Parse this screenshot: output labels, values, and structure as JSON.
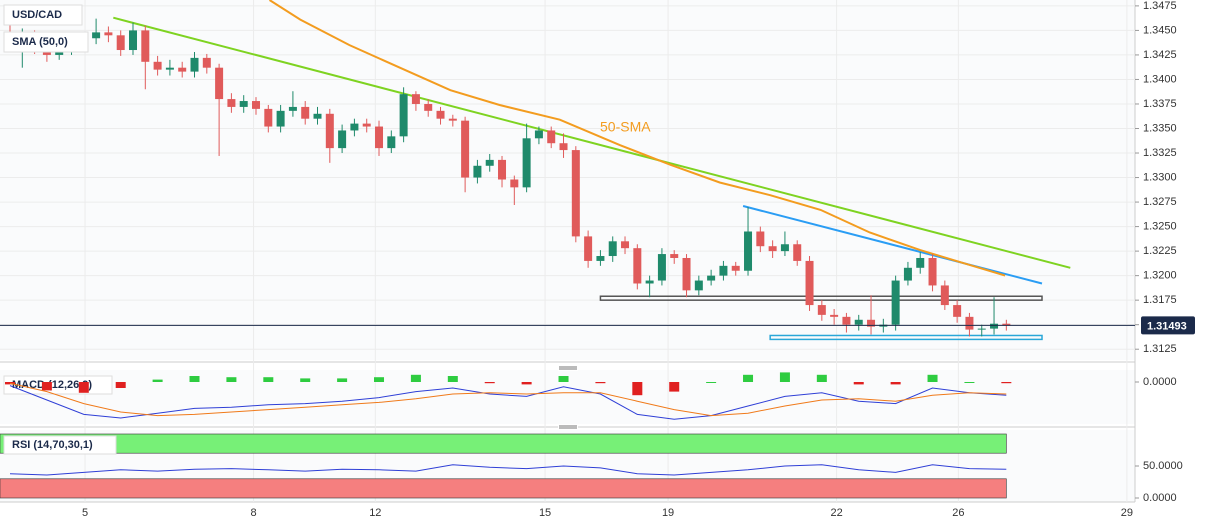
{
  "chart_data": [
    {
      "type": "candlestick",
      "title": "USD/CAD",
      "sma_title": "SMA (50,0)",
      "sma_label": "50-SMA",
      "up_color": "#1f8a6b",
      "down_color": "#e05a5a",
      "grid": true,
      "xlim": [
        -0.813,
        91.46
      ],
      "ylim": [
        1.3114,
        1.3481
      ],
      "xticks": [
        {
          "value": 6.1,
          "label": "5"
        },
        {
          "value": 19.8,
          "label": "8"
        },
        {
          "value": 29.7,
          "label": "12"
        },
        {
          "value": 43.5,
          "label": "15"
        },
        {
          "value": 53.5,
          "label": "19"
        },
        {
          "value": 67.2,
          "label": "22"
        },
        {
          "value": 77.1,
          "label": "26"
        },
        {
          "value": 90.8,
          "label": "29"
        }
      ],
      "yticks": [
        1.3125,
        {
          "value": 1.315,
          "label": "1.3150"
        },
        1.3175,
        {
          "value": 1.32,
          "label": "1.3200"
        },
        1.3225,
        {
          "value": 1.325,
          "label": "1.3250"
        },
        1.3275,
        {
          "value": 1.33,
          "label": "1.3300"
        },
        1.3325,
        {
          "value": 1.335,
          "label": "1.3350"
        },
        1.3375,
        {
          "value": 1.34,
          "label": "1.3400"
        },
        1.3425,
        {
          "value": 1.345,
          "label": "1.3450"
        },
        1.3475
      ],
      "open": [
        1.3448,
        1.344,
        1.3445,
        1.3432,
        1.3425,
        1.343,
        1.3438,
        1.3442,
        1.3448,
        1.3445,
        1.343,
        1.345,
        1.3418,
        1.341,
        1.3412,
        1.3408,
        1.3422,
        1.3412,
        1.338,
        1.3372,
        1.3378,
        1.337,
        1.3352,
        1.3368,
        1.3372,
        1.336,
        1.3365,
        1.333,
        1.3348,
        1.3355,
        1.3352,
        1.333,
        1.3342,
        1.3385,
        1.3375,
        1.3368,
        1.336,
        1.3358,
        1.33,
        1.3312,
        1.3318,
        1.3298,
        1.329,
        1.334,
        1.3348,
        1.3335,
        1.3328,
        1.324,
        1.3215,
        1.322,
        1.3235,
        1.3228,
        1.3192,
        1.3195,
        1.3222,
        1.3218,
        1.3185,
        1.3195,
        1.32,
        1.321,
        1.3205,
        1.3245,
        1.323,
        1.3225,
        1.3232,
        1.3215,
        1.317,
        1.316,
        1.3158,
        1.315,
        1.3155,
        1.3148,
        1.315,
        1.3195,
        1.3208,
        1.3218,
        1.319,
        1.317,
        1.3158,
        1.3145,
        1.3146,
        1.3151
      ],
      "high": [
        1.3455,
        1.3452,
        1.345,
        1.3438,
        1.3436,
        1.3444,
        1.3448,
        1.3462,
        1.3454,
        1.345,
        1.3458,
        1.3455,
        1.3424,
        1.342,
        1.3418,
        1.3428,
        1.3426,
        1.3416,
        1.3386,
        1.3384,
        1.3382,
        1.3374,
        1.3374,
        1.3388,
        1.3378,
        1.3372,
        1.337,
        1.3354,
        1.336,
        1.336,
        1.3358,
        1.3348,
        1.3392,
        1.3388,
        1.338,
        1.3372,
        1.3364,
        1.3362,
        1.3318,
        1.3324,
        1.3322,
        1.3302,
        1.3355,
        1.3352,
        1.3352,
        1.3345,
        1.3332,
        1.3246,
        1.3226,
        1.324,
        1.324,
        1.3232,
        1.32,
        1.3228,
        1.3226,
        1.3222,
        1.32,
        1.3206,
        1.3215,
        1.3214,
        1.327,
        1.325,
        1.3236,
        1.3245,
        1.3236,
        1.322,
        1.3175,
        1.3166,
        1.3162,
        1.316,
        1.318,
        1.3156,
        1.32,
        1.3214,
        1.3224,
        1.3222,
        1.3195,
        1.3175,
        1.3162,
        1.315,
        1.3178,
        1.3155
      ],
      "low": [
        1.3432,
        1.3412,
        1.3426,
        1.3418,
        1.342,
        1.3425,
        1.3432,
        1.3436,
        1.3438,
        1.3424,
        1.3425,
        1.339,
        1.3404,
        1.3404,
        1.3402,
        1.3402,
        1.3406,
        1.3322,
        1.3366,
        1.3366,
        1.3364,
        1.3346,
        1.3346,
        1.3362,
        1.3354,
        1.3354,
        1.3315,
        1.3325,
        1.3342,
        1.3346,
        1.3322,
        1.3325,
        1.3336,
        1.3368,
        1.3362,
        1.3354,
        1.3352,
        1.3285,
        1.3294,
        1.3306,
        1.329,
        1.3272,
        1.3285,
        1.3334,
        1.333,
        1.332,
        1.3234,
        1.3208,
        1.321,
        1.3214,
        1.3222,
        1.3186,
        1.3178,
        1.319,
        1.3212,
        1.3178,
        1.318,
        1.319,
        1.3195,
        1.32,
        1.32,
        1.3224,
        1.3218,
        1.322,
        1.321,
        1.3164,
        1.3154,
        1.315,
        1.3142,
        1.3144,
        1.314,
        1.3142,
        1.3144,
        1.319,
        1.3202,
        1.3184,
        1.3165,
        1.3152,
        1.3138,
        1.3138,
        1.314,
        1.3144
      ],
      "close": [
        1.344,
        1.3445,
        1.3432,
        1.3425,
        1.343,
        1.3438,
        1.3442,
        1.3448,
        1.3445,
        1.343,
        1.345,
        1.3418,
        1.341,
        1.3412,
        1.3408,
        1.3422,
        1.3412,
        1.338,
        1.3372,
        1.3378,
        1.337,
        1.3352,
        1.3368,
        1.3372,
        1.336,
        1.3365,
        1.333,
        1.3348,
        1.3355,
        1.3352,
        1.333,
        1.3342,
        1.3385,
        1.3375,
        1.3368,
        1.336,
        1.3358,
        1.33,
        1.3312,
        1.3318,
        1.3298,
        1.329,
        1.334,
        1.3348,
        1.3335,
        1.3328,
        1.324,
        1.3215,
        1.322,
        1.3235,
        1.3228,
        1.3192,
        1.3195,
        1.3222,
        1.3218,
        1.3185,
        1.3195,
        1.32,
        1.321,
        1.3205,
        1.3245,
        1.323,
        1.3225,
        1.3232,
        1.3215,
        1.317,
        1.316,
        1.3158,
        1.315,
        1.3155,
        1.3148,
        1.315,
        1.3195,
        1.3208,
        1.3218,
        1.319,
        1.317,
        1.3158,
        1.3145,
        1.3146,
        1.3151,
        1.3149
      ],
      "sma": {
        "color": "#f39c1f",
        "x": [
          21.1,
          23.6,
          27.6,
          31.7,
          35.8,
          39.8,
          44.7,
          49.6,
          53.7,
          57.7,
          61.8,
          65.9,
          69.9,
          74,
          77.2,
          80.9
        ],
        "values": [
          1.3481,
          1.3461,
          1.3435,
          1.3412,
          1.3389,
          1.3374,
          1.3359,
          1.3333,
          1.3313,
          1.3295,
          1.3282,
          1.3267,
          1.3244,
          1.3226,
          1.3214,
          1.32
        ]
      },
      "trendlines": [
        {
          "color": "#7ed321",
          "x": [
            8.4,
            86.2
          ],
          "values": [
            1.3463,
            1.3208
          ]
        },
        {
          "color": "#2a9df4",
          "x": [
            59.6,
            83.9
          ],
          "values": [
            1.3271,
            1.3192
          ]
        }
      ],
      "zones": [
        {
          "color": "#555555",
          "x": [
            48.0,
            83.9
          ],
          "values": [
            1.3179,
            1.3175
          ]
        },
        {
          "color": "#2aa7d8",
          "x": [
            61.8,
            83.9
          ],
          "values": [
            1.3139,
            1.3135
          ]
        }
      ],
      "last_price": 1.31493,
      "last_price_color": "#1b2a4a"
    },
    {
      "type": "macd",
      "title": "MACD (12,26,9)",
      "xlim": [
        -0.813,
        91.46
      ],
      "ylim": [
        -0.0035,
        0.001
      ],
      "yticks": [
        {
          "value": 0,
          "label": "0.0000"
        }
      ],
      "x": [
        0,
        3,
        6,
        9,
        12,
        15,
        18,
        21,
        24,
        27,
        30,
        33,
        36,
        39,
        42,
        45,
        48,
        51,
        54,
        57,
        60,
        63,
        66,
        69,
        72,
        75,
        78,
        81
      ],
      "macd": {
        "color": "#2f3fd6",
        "values": [
          -0.0003,
          -0.0015,
          -0.0027,
          -0.003,
          -0.0026,
          -0.0022,
          -0.0021,
          -0.0019,
          -0.0018,
          -0.0016,
          -0.0013,
          -0.0008,
          -0.0005,
          -0.001,
          -0.0012,
          -0.0004,
          -0.001,
          -0.0027,
          -0.0031,
          -0.0028,
          -0.002,
          -0.0012,
          -0.0009,
          -0.0016,
          -0.0018,
          -0.0005,
          -0.0009,
          -0.0011
        ]
      },
      "signal": {
        "color": "#f07a1a",
        "values": [
          -0.0001,
          -0.0008,
          -0.0018,
          -0.0025,
          -0.0028,
          -0.0027,
          -0.0025,
          -0.0023,
          -0.0021,
          -0.0019,
          -0.0017,
          -0.0014,
          -0.001,
          -0.0009,
          -0.001,
          -0.0009,
          -0.0009,
          -0.0016,
          -0.0023,
          -0.0028,
          -0.0026,
          -0.002,
          -0.0015,
          -0.0014,
          -0.0016,
          -0.0011,
          -0.0009,
          -0.001
        ]
      },
      "histogram": {
        "up_color": "#2ecc40",
        "down_color": "#e02020",
        "values": [
          -0.0002,
          -0.0007,
          -0.0009,
          -0.0005,
          0.0002,
          0.0005,
          0.0004,
          0.0004,
          0.0003,
          0.0003,
          0.0004,
          0.0006,
          0.0005,
          -0.0001,
          -0.0002,
          0.0005,
          -0.0001,
          -0.0011,
          -0.0008,
          0,
          0.0006,
          0.0008,
          0.0006,
          -0.0002,
          -0.0002,
          0.0006,
          0,
          -0.0001
        ]
      }
    },
    {
      "type": "rsi",
      "title": "RSI (14,70,30,1)",
      "xlim": [
        -0.813,
        91.46
      ],
      "ylim": [
        0,
        100
      ],
      "yticks": [
        {
          "value": 0,
          "label": "0.0000"
        },
        {
          "value": 50,
          "label": "50.0000"
        }
      ],
      "x": [
        0,
        3,
        6,
        9,
        12,
        15,
        18,
        21,
        24,
        27,
        30,
        33,
        36,
        39,
        42,
        45,
        48,
        51,
        54,
        57,
        60,
        63,
        66,
        69,
        72,
        75,
        78,
        81
      ],
      "color": "#2f3fd6",
      "values": [
        38,
        36,
        40,
        44,
        42,
        45,
        46,
        44,
        42,
        45,
        44,
        42,
        52,
        48,
        46,
        50,
        47,
        38,
        36,
        40,
        44,
        50,
        52,
        44,
        40,
        52,
        46,
        45
      ],
      "bands": [
        {
          "color": "#77f077",
          "range": [
            70,
            100
          ]
        },
        {
          "color": "#f57f7f",
          "range": [
            0,
            30
          ]
        }
      ]
    }
  ]
}
